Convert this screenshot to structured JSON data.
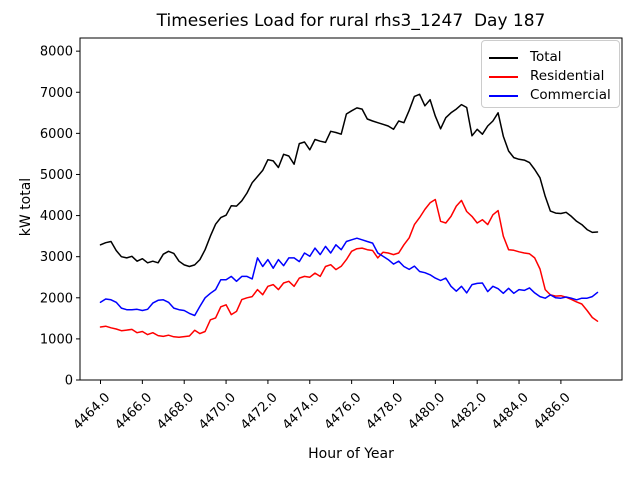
{
  "chart_data": {
    "type": "line",
    "title": "Timeseries Load for rural rhs3_1247  Day 187",
    "xlabel": "Hour of Year",
    "ylabel": "kW total",
    "legend_position": "upper right",
    "grid": false,
    "xlim": [
      4463.02,
      4488.92
    ],
    "ylim": [
      0,
      8320
    ],
    "x_ticks": [
      4464,
      4466,
      4468,
      4470,
      4472,
      4474,
      4476,
      4478,
      4480,
      4482,
      4484,
      4486
    ],
    "x_tick_labels": [
      "4464.0",
      "4466.0",
      "4468.0",
      "4470.0",
      "4472.0",
      "4474.0",
      "4476.0",
      "4478.0",
      "4480.0",
      "4482.0",
      "4484.0",
      "4486.0"
    ],
    "y_ticks": [
      0,
      1000,
      2000,
      3000,
      4000,
      5000,
      6000,
      7000,
      8000
    ],
    "y_tick_labels": [
      "0",
      "1000",
      "2000",
      "3000",
      "4000",
      "5000",
      "6000",
      "7000",
      "8000"
    ],
    "x_start": 4464.0,
    "x_step": 0.25,
    "series": [
      {
        "name": "Total",
        "color": "#000000",
        "values": [
          3290,
          3340,
          3370,
          3150,
          3000,
          2970,
          3010,
          2890,
          2950,
          2850,
          2890,
          2850,
          3060,
          3130,
          3080,
          2890,
          2800,
          2760,
          2800,
          2930,
          3170,
          3500,
          3790,
          3950,
          4010,
          4240,
          4230,
          4360,
          4550,
          4800,
          4950,
          5100,
          5360,
          5330,
          5170,
          5490,
          5450,
          5250,
          5750,
          5790,
          5600,
          5850,
          5810,
          5780,
          6050,
          6020,
          5980,
          6470,
          6550,
          6620,
          6590,
          6350,
          6300,
          6260,
          6220,
          6180,
          6100,
          6300,
          6260,
          6560,
          6900,
          6950,
          6670,
          6820,
          6420,
          6110,
          6380,
          6500,
          6590,
          6700,
          6630,
          5940,
          6100,
          5980,
          6180,
          6300,
          6500,
          5930,
          5570,
          5410,
          5370,
          5350,
          5290,
          5120,
          4920,
          4470,
          4110,
          4060,
          4050,
          4080,
          3980,
          3860,
          3780,
          3660,
          3590,
          3600
        ]
      },
      {
        "name": "Residential",
        "color": "#ff0000",
        "values": [
          1290,
          1310,
          1270,
          1240,
          1200,
          1215,
          1230,
          1150,
          1180,
          1105,
          1150,
          1080,
          1060,
          1090,
          1050,
          1040,
          1055,
          1070,
          1210,
          1130,
          1180,
          1465,
          1510,
          1780,
          1830,
          1590,
          1670,
          1955,
          2000,
          2030,
          2200,
          2075,
          2280,
          2320,
          2200,
          2360,
          2400,
          2280,
          2480,
          2520,
          2500,
          2600,
          2520,
          2760,
          2805,
          2685,
          2765,
          2930,
          3130,
          3195,
          3210,
          3170,
          3150,
          2970,
          3110,
          3090,
          3050,
          3090,
          3290,
          3460,
          3780,
          3950,
          4150,
          4310,
          4390,
          3860,
          3820,
          3980,
          4230,
          4370,
          4100,
          3980,
          3820,
          3900,
          3780,
          4020,
          4120,
          3500,
          3170,
          3155,
          3120,
          3090,
          3070,
          2970,
          2700,
          2200,
          2070,
          2040,
          2050,
          2015,
          1960,
          1900,
          1850,
          1690,
          1520,
          1430
        ]
      },
      {
        "name": "Commercial",
        "color": "#0000ff",
        "values": [
          1890,
          1970,
          1950,
          1890,
          1750,
          1710,
          1710,
          1720,
          1690,
          1720,
          1870,
          1940,
          1950,
          1890,
          1750,
          1710,
          1690,
          1620,
          1570,
          1790,
          2000,
          2110,
          2200,
          2440,
          2440,
          2520,
          2400,
          2520,
          2520,
          2460,
          2970,
          2760,
          2930,
          2720,
          2930,
          2780,
          2970,
          2970,
          2880,
          3090,
          3010,
          3210,
          3050,
          3250,
          3090,
          3290,
          3170,
          3370,
          3410,
          3450,
          3410,
          3370,
          3330,
          3090,
          3010,
          2930,
          2820,
          2890,
          2760,
          2690,
          2770,
          2640,
          2610,
          2560,
          2480,
          2420,
          2480,
          2280,
          2160,
          2280,
          2120,
          2320,
          2350,
          2360,
          2150,
          2280,
          2220,
          2110,
          2230,
          2110,
          2200,
          2180,
          2240,
          2120,
          2030,
          1990,
          2070,
          2000,
          1990,
          2020,
          1990,
          1950,
          1990,
          1990,
          2030,
          2130
        ]
      }
    ]
  }
}
